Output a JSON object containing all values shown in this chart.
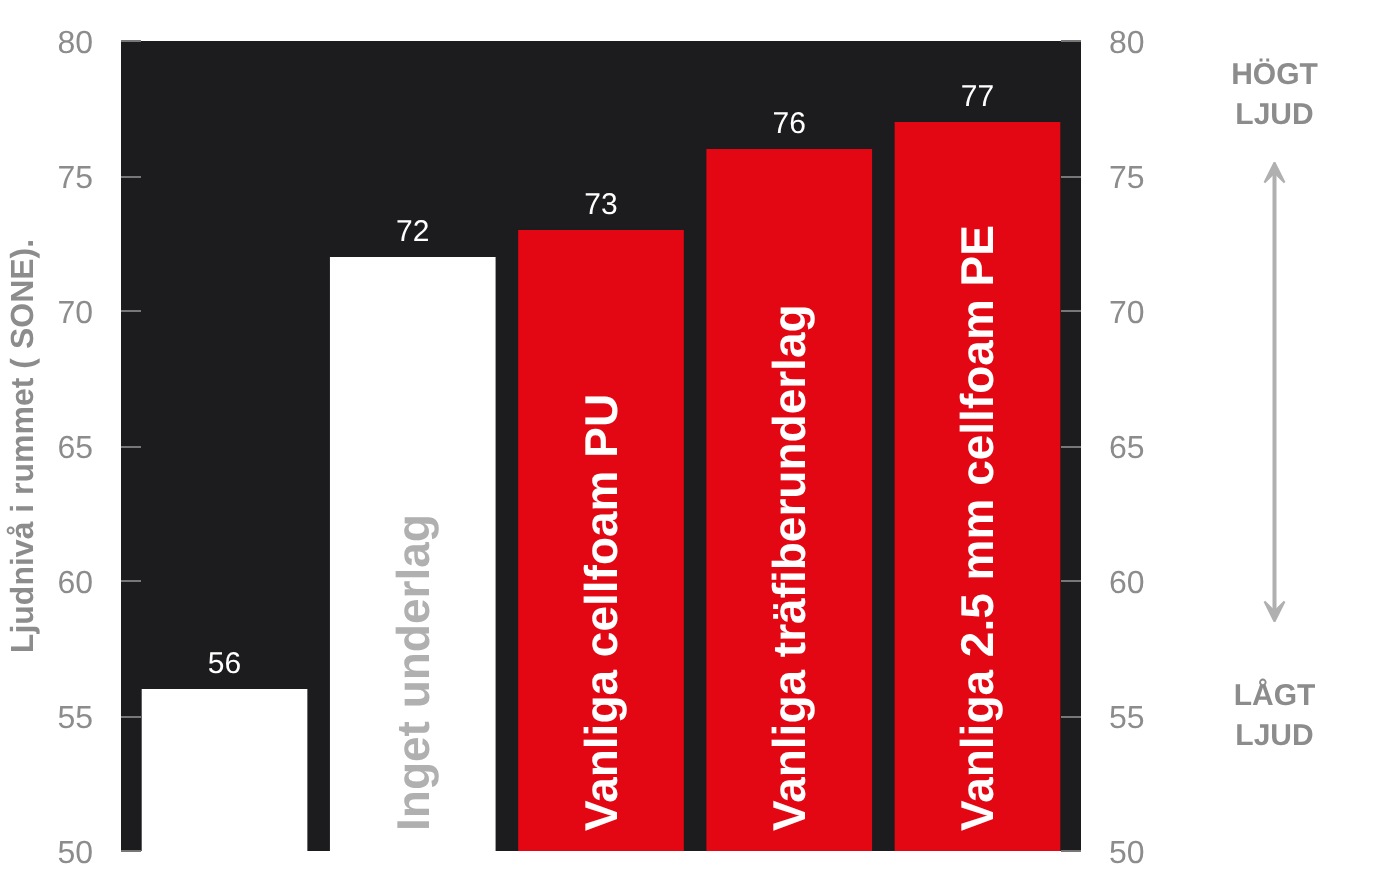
{
  "chart_data": {
    "type": "bar",
    "ylabel": "Ljudnivå i rummet ( SONE).",
    "categories": [
      null,
      "Inget underlag",
      "Vanliga cellfoam PU",
      "Vanliga träfiberunderlag",
      "Vanliga 2.5 mm cellfoam PE"
    ],
    "values": [
      56,
      72,
      73,
      76,
      77
    ],
    "colors": [
      "#ffffff",
      "#ffffff",
      "#e30613",
      "#e30613",
      "#e30613"
    ],
    "ylim": [
      50,
      80
    ],
    "yticks": [
      50,
      55,
      60,
      65,
      70,
      75,
      80
    ],
    "y2lim": [
      50,
      80
    ],
    "y2ticks": [
      50,
      55,
      60,
      65,
      70,
      75,
      80
    ],
    "data_labels": true,
    "grid": false,
    "annotations": [
      "HÖGT LJUD",
      "LÅGT LJUD"
    ]
  }
}
